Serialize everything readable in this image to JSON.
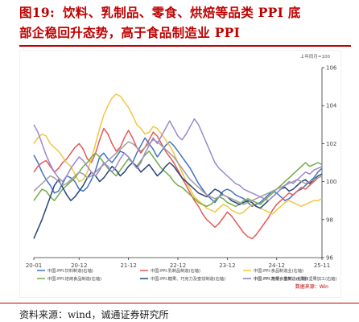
{
  "figure": {
    "title_number": "图19:",
    "title_line1": "饮料、乳制品、零食、烘焙等品类 PPI 底",
    "title_line2": "部企稳回升态势，高于食品制造业 PPI",
    "source": "资料来源：wind，诚通证券研究所"
  },
  "chart_data": {
    "type": "line",
    "y_unit_label": "上年同月=100",
    "ylim": [
      96,
      106
    ],
    "y_ticks": [
      96,
      98,
      100,
      102,
      104,
      106
    ],
    "x_ticks": [
      {
        "label": "20-01",
        "t": 0
      },
      {
        "label": "20-12",
        "t": 11
      },
      {
        "label": "21-12",
        "t": 23
      },
      {
        "label": "22-12",
        "t": 35
      },
      {
        "label": "23-12",
        "t": 47
      },
      {
        "label": "24-12",
        "t": 59
      },
      {
        "label": "25-11",
        "t": 70
      }
    ],
    "x_range": [
      0,
      70
    ],
    "data_source": "数据来源：Win",
    "series": [
      {
        "name": "中国:PPI:饮料制造(右轴)",
        "color": "#4472c4",
        "values": [
          101.4,
          101.0,
          100.5,
          100.1,
          99.8,
          99.4,
          99.5,
          99.9,
          100.3,
          100.2,
          100.0,
          99.6,
          99.5,
          99.7,
          100.1,
          100.6,
          101.3,
          101.5,
          101.2,
          101.0,
          101.3,
          101.6,
          101.5,
          101.3,
          101.0,
          101.5,
          101.9,
          102.3,
          102.0,
          101.7,
          101.3,
          101.6,
          101.9,
          102.1,
          101.9,
          101.6,
          101.3,
          101.0,
          100.7,
          100.3,
          99.9,
          99.6,
          99.3,
          99.1,
          98.9,
          99.2,
          99.5,
          99.6,
          99.5,
          99.3,
          99.2,
          99.1,
          98.9,
          98.7,
          98.8,
          98.9,
          99.1,
          99.3,
          99.5,
          99.4,
          99.2,
          99.0,
          99.1,
          99.3,
          99.5,
          99.6,
          99.8,
          100.0,
          100.2,
          100.5,
          100.7
        ]
      },
      {
        "name": "中国:PPI:乳制品制造(右轴)",
        "color": "#e85858",
        "values": [
          100.5,
          100.8,
          101.0,
          101.1,
          100.8,
          100.5,
          100.7,
          101.0,
          101.2,
          101.5,
          101.8,
          102.0,
          101.7,
          101.2,
          101.0,
          101.5,
          102.2,
          102.8,
          102.5,
          102.0,
          101.6,
          101.8,
          102.3,
          102.7,
          102.3,
          101.8,
          101.5,
          101.8,
          102.2,
          102.6,
          102.4,
          102.0,
          101.6,
          101.3,
          101.0,
          100.6,
          100.2,
          99.8,
          99.4,
          99.0,
          98.7,
          98.3,
          98.0,
          97.8,
          97.6,
          97.8,
          98.1,
          98.4,
          98.2,
          97.9,
          97.6,
          97.3,
          97.1,
          97.0,
          97.2,
          97.5,
          97.8,
          98.1,
          98.5,
          98.8,
          99.0,
          99.2,
          99.4,
          99.3,
          99.5,
          99.7,
          99.6,
          99.8,
          100.0,
          100.2,
          100.3
        ]
      },
      {
        "name": "中国:PPI:食品制造业(右轴)",
        "color": "#f2c641",
        "values": [
          102.0,
          102.3,
          102.5,
          102.4,
          102.0,
          101.8,
          101.6,
          101.3,
          101.0,
          100.8,
          100.4,
          100.0,
          100.1,
          100.5,
          101.2,
          102.0,
          102.8,
          103.5,
          104.0,
          104.4,
          104.6,
          104.5,
          104.2,
          103.9,
          103.5,
          103.0,
          102.8,
          102.5,
          102.6,
          102.9,
          102.8,
          102.5,
          102.2,
          101.9,
          101.5,
          101.0,
          100.5,
          100.0,
          99.6,
          99.2,
          99.0,
          98.8,
          98.6,
          98.5,
          98.4,
          98.6,
          98.8,
          98.7,
          98.5,
          98.4,
          98.3,
          98.4,
          98.6,
          98.8,
          98.7,
          98.6,
          98.5,
          98.4,
          98.3,
          98.5,
          98.7,
          98.9,
          99.0,
          98.9,
          98.8,
          98.7,
          98.8,
          98.9,
          99.0,
          99.0,
          99.1
        ]
      },
      {
        "name": "中国:PPI:焙烤食品制造(右轴)",
        "color": "#70ad47",
        "values": [
          99.0,
          99.3,
          99.6,
          99.5,
          99.2,
          99.0,
          99.3,
          99.6,
          99.8,
          100.0,
          100.2,
          100.5,
          100.8,
          101.0,
          101.3,
          101.5,
          101.3,
          101.0,
          100.7,
          100.5,
          100.3,
          100.6,
          100.9,
          101.2,
          101.0,
          100.8,
          101.1,
          101.4,
          101.6,
          101.3,
          101.0,
          100.7,
          100.5,
          100.3,
          100.0,
          99.8,
          99.7,
          99.5,
          99.3,
          99.1,
          98.9,
          98.8,
          98.7,
          98.8,
          99.0,
          99.2,
          99.1,
          98.9,
          98.8,
          98.7,
          98.8,
          99.0,
          99.1,
          99.0,
          98.9,
          98.8,
          99.0,
          99.2,
          99.4,
          99.6,
          99.8,
          100.0,
          100.2,
          100.4,
          100.6,
          100.8,
          101.0,
          100.8,
          100.9,
          101.0,
          100.9
        ]
      },
      {
        "name": "中国:PPI:糖果、巧克力及蜜饯制造(右轴)",
        "color": "#264478",
        "values": [
          97.0,
          97.5,
          98.0,
          98.6,
          99.2,
          99.8,
          100.1,
          99.7,
          99.3,
          99.0,
          99.2,
          99.5,
          99.8,
          100.2,
          100.5,
          100.3,
          100.0,
          100.2,
          100.5,
          100.8,
          100.6,
          100.3,
          100.5,
          100.8,
          101.0,
          100.8,
          100.5,
          100.7,
          100.9,
          100.6,
          100.3,
          100.5,
          100.8,
          101.0,
          100.8,
          100.5,
          100.2,
          100.0,
          99.8,
          99.6,
          99.4,
          99.3,
          99.2,
          99.4,
          99.6,
          99.5,
          99.3,
          99.2,
          99.0,
          98.9,
          98.8,
          98.9,
          99.0,
          98.9,
          98.7,
          98.6,
          98.8,
          99.0,
          99.2,
          99.4,
          99.6,
          99.7,
          99.5,
          99.6,
          99.8,
          100.0,
          100.1,
          99.9,
          100.1,
          100.3,
          100.4
        ]
      },
      {
        "name": "中国:PPI:方便食品制造(右轴)",
        "color": "#9e9e9e",
        "values": [
          99.5,
          99.7,
          99.9,
          100.1,
          100.3,
          100.2,
          100.0,
          99.8,
          99.9,
          100.1,
          100.3,
          100.5,
          100.4,
          100.2,
          100.3,
          100.5,
          100.7,
          100.9,
          101.1,
          101.3,
          101.5,
          101.7,
          101.9,
          102.1,
          102.0,
          101.8,
          101.6,
          101.8,
          102.0,
          102.2,
          102.1,
          101.9,
          101.7,
          101.5,
          101.3,
          101.0,
          100.7,
          100.4,
          100.1,
          99.9,
          99.7,
          99.5,
          99.3,
          99.2,
          99.1,
          99.2,
          99.3,
          99.2,
          99.1,
          99.0,
          98.9,
          98.8,
          98.9,
          99.0,
          99.1,
          99.2,
          99.3,
          99.4,
          99.5,
          99.6,
          99.7,
          99.8,
          99.9,
          100.0,
          100.1,
          100.0,
          99.9,
          100.0,
          100.1,
          100.2,
          100.3
        ]
      },
      {
        "name": "中国:PPI:蔬菜、菌类、水果和坚果加工(右轴)",
        "color": "#9c88cc",
        "values": [
          103.0,
          102.6,
          102.0,
          101.4,
          100.9,
          100.5,
          100.2,
          100.0,
          100.3,
          100.7,
          101.0,
          101.3,
          101.1,
          100.8,
          100.5,
          100.3,
          100.6,
          101.0,
          100.8,
          100.5,
          100.8,
          101.2,
          101.5,
          101.3,
          101.0,
          100.7,
          101.0,
          101.5,
          101.9,
          102.3,
          102.0,
          102.4,
          102.8,
          103.2,
          102.8,
          102.4,
          102.2,
          102.5,
          102.9,
          103.3,
          103.0,
          102.5,
          102.0,
          101.5,
          101.0,
          100.7,
          100.5,
          100.3,
          100.1,
          99.9,
          99.8,
          99.6,
          99.5,
          99.4,
          99.3,
          99.2,
          99.1,
          99.0,
          99.2,
          99.4,
          99.6,
          99.8,
          100.0,
          99.9,
          100.1,
          100.3,
          100.5,
          100.4,
          100.6,
          100.7,
          100.8
        ]
      }
    ]
  }
}
